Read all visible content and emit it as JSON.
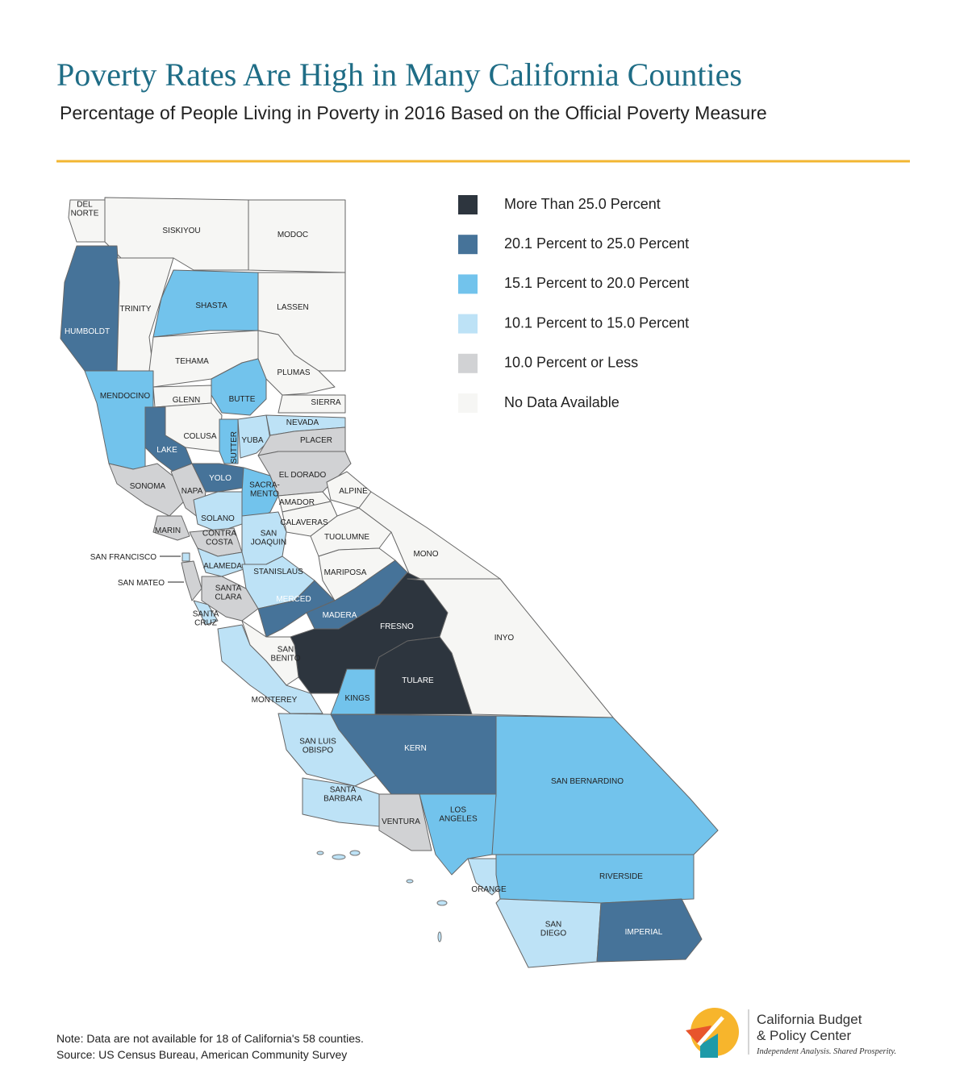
{
  "header": {
    "title": "Poverty Rates Are High in Many California Counties",
    "subtitle": "Percentage of People Living in Poverty in 2016 Based on the Official Poverty Measure"
  },
  "legend": [
    {
      "label": "More Than 25.0 Percent",
      "color": "#2d353e"
    },
    {
      "label": "20.1 Percent to 25.0 Percent",
      "color": "#467399"
    },
    {
      "label": "15.1 Percent to 20.0 Percent",
      "color": "#72c3ec"
    },
    {
      "label": "10.1 Percent to 15.0 Percent",
      "color": "#bde2f6"
    },
    {
      "label": "10.0 Percent or Less",
      "color": "#d1d2d4"
    },
    {
      "label": "No Data Available",
      "color": "#f6f6f4"
    }
  ],
  "counties": [
    {
      "label": [
        "DEL",
        "NORTE"
      ],
      "category": 5
    },
    {
      "label": [
        "SISKIYOU"
      ],
      "category": 5
    },
    {
      "label": [
        "MODOC"
      ],
      "category": 5
    },
    {
      "label": [
        "HUMBOLDT"
      ],
      "category": 1
    },
    {
      "label": [
        "TRINITY"
      ],
      "category": 5
    },
    {
      "label": [
        "SHASTA"
      ],
      "category": 2
    },
    {
      "label": [
        "LASSEN"
      ],
      "category": 5
    },
    {
      "label": [
        "TEHAMA"
      ],
      "category": 5
    },
    {
      "label": [
        "PLUMAS"
      ],
      "category": 5
    },
    {
      "label": [
        "MENDOCINO"
      ],
      "category": 2
    },
    {
      "label": [
        "GLENN"
      ],
      "category": 5
    },
    {
      "label": [
        "BUTTE"
      ],
      "category": 2
    },
    {
      "label": [
        "SIERRA"
      ],
      "category": 5
    },
    {
      "label": [
        "COLUSA"
      ],
      "category": 5
    },
    {
      "label": [
        "LAKE"
      ],
      "category": 1
    },
    {
      "label": [
        "NEVADA"
      ],
      "category": 3
    },
    {
      "label": [
        "SUTTER"
      ],
      "category": 2
    },
    {
      "label": [
        "YUBA"
      ],
      "category": 3
    },
    {
      "label": [
        "PLACER"
      ],
      "category": 4
    },
    {
      "label": [
        "SONOMA"
      ],
      "category": 4
    },
    {
      "label": [
        "NAPA"
      ],
      "category": 4
    },
    {
      "label": [
        "YOLO"
      ],
      "category": 1
    },
    {
      "label": [
        "SACRA-",
        "MENTO"
      ],
      "category": 2
    },
    {
      "label": [
        "EL DORADO"
      ],
      "category": 4
    },
    {
      "label": [
        "ALPINE"
      ],
      "category": 5
    },
    {
      "label": [
        "AMADOR"
      ],
      "category": 5
    },
    {
      "label": [
        "SOLANO"
      ],
      "category": 3
    },
    {
      "label": [
        "MARIN"
      ],
      "category": 4
    },
    {
      "label": [
        "CALAVERAS"
      ],
      "category": 5
    },
    {
      "label": [
        "CONTRA",
        "COSTA"
      ],
      "category": 4
    },
    {
      "label": [
        "SAN",
        "JOAQUIN"
      ],
      "category": 3
    },
    {
      "label": [
        "TUOLUMNE"
      ],
      "category": 5
    },
    {
      "label": [
        "MONO"
      ],
      "category": 5
    },
    {
      "label": [
        "SAN FRANCISCO"
      ],
      "category": 3
    },
    {
      "label": [
        "SAN MATEO"
      ],
      "category": 4
    },
    {
      "label": [
        "ALAMEDA"
      ],
      "category": 3
    },
    {
      "label": [
        "STANISLAUS"
      ],
      "category": 3
    },
    {
      "label": [
        "MARIPOSA"
      ],
      "category": 5
    },
    {
      "label": [
        "SANTA",
        "CLARA"
      ],
      "category": 4
    },
    {
      "label": [
        "MERCED"
      ],
      "category": 1
    },
    {
      "label": [
        "MADERA"
      ],
      "category": 1
    },
    {
      "label": [
        "FRESNO"
      ],
      "category": 0
    },
    {
      "label": [
        "INYO"
      ],
      "category": 5
    },
    {
      "label": [
        "SANTA",
        "CRUZ"
      ],
      "category": 3
    },
    {
      "label": [
        "SAN",
        "BENITO"
      ],
      "category": 5
    },
    {
      "label": [
        "MONTEREY"
      ],
      "category": 3
    },
    {
      "label": [
        "TULARE"
      ],
      "category": 0
    },
    {
      "label": [
        "KINGS"
      ],
      "category": 2
    },
    {
      "label": [
        "SAN LUIS",
        "OBISPO"
      ],
      "category": 3
    },
    {
      "label": [
        "KERN"
      ],
      "category": 1
    },
    {
      "label": [
        "SAN BERNARDINO"
      ],
      "category": 2
    },
    {
      "label": [
        "SANTA",
        "BARBARA"
      ],
      "category": 3
    },
    {
      "label": [
        "VENTURA"
      ],
      "category": 4
    },
    {
      "label": [
        "LOS",
        "ANGELES"
      ],
      "category": 2
    },
    {
      "label": [
        "ORANGE"
      ],
      "category": 3
    },
    {
      "label": [
        "RIVERSIDE"
      ],
      "category": 2
    },
    {
      "label": [
        "SAN",
        "DIEGO"
      ],
      "category": 3
    },
    {
      "label": [
        "IMPERIAL"
      ],
      "category": 1
    }
  ],
  "notes": [
    "Note: Data are not available for 18 of California's 58 counties.",
    "Source: US Census Bureau, American Community Survey"
  ],
  "logo": {
    "name": [
      "California Budget",
      "& Policy Center"
    ],
    "tagline": "Independent Analysis. Shared Prosperity."
  }
}
